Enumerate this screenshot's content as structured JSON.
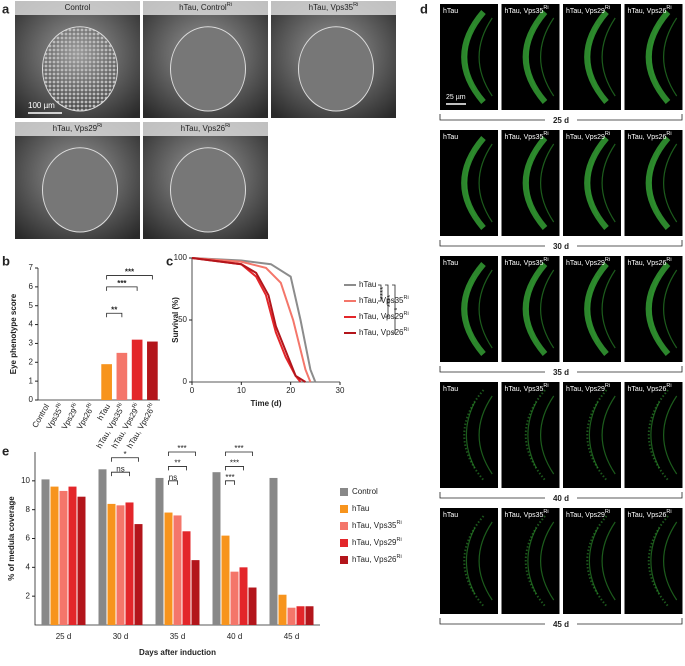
{
  "panel_labels": [
    "a",
    "b",
    "c",
    "d",
    "e"
  ],
  "panel_a": {
    "images": [
      {
        "label": "Control"
      },
      {
        "label": "hTau, Control",
        "sup": "Ri"
      },
      {
        "label": "hTau, Vps35",
        "sup": "Ri"
      },
      {
        "label": "hTau, Vps29",
        "sup": "Ri"
      },
      {
        "label": "hTau, Vps26",
        "sup": "Ri"
      }
    ],
    "scale_bar": "100 µm"
  },
  "panel_d": {
    "columns": [
      {
        "label": "hTau"
      },
      {
        "label": "hTau, Vps35",
        "sup": "Ri"
      },
      {
        "label": "hTau, Vps29",
        "sup": "Ri"
      },
      {
        "label": "hTau, Vps26",
        "sup": "Ri"
      }
    ],
    "rows": [
      "25 d",
      "30 d",
      "35 d",
      "40 d",
      "45 d"
    ],
    "scale_bar": "25 µm"
  },
  "chart_data": [
    {
      "type": "bar",
      "ylabel": "Eye phenotype score",
      "categories": [
        {
          "text": "Control"
        },
        {
          "text": "Vps35",
          "sup": "Ri"
        },
        {
          "text": "Vps29",
          "sup": "Ri"
        },
        {
          "text": "Vps26",
          "sup": "Ri"
        },
        {
          "text": "hTau"
        },
        {
          "text": "hTau, Vps35",
          "sup": "Ri"
        },
        {
          "text": "hTau, Vps29",
          "sup": "Ri"
        },
        {
          "text": "hTau, Vps26",
          "sup": "Ri"
        }
      ],
      "values": [
        0,
        0,
        0,
        0,
        1.9,
        2.5,
        3.2,
        3.1
      ],
      "colors": [
        "#888888",
        "#888888",
        "#888888",
        "#888888",
        "#f7941d",
        "#f4766a",
        "#e3262a",
        "#b3151b"
      ],
      "ylim": [
        0,
        7
      ],
      "yticks": [
        0,
        1,
        2,
        3,
        4,
        5,
        6,
        7
      ],
      "annotations": [
        "**",
        "***",
        "***"
      ]
    },
    {
      "type": "line",
      "xlabel": "Time (d)",
      "ylabel": "Survival (%)",
      "xlim": [
        0,
        30
      ],
      "ylim": [
        0,
        100
      ],
      "xticks": [
        0,
        10,
        20,
        30
      ],
      "yticks": [
        0,
        50,
        100
      ],
      "series": [
        {
          "name": "hTau",
          "color": "#8c8c8c",
          "x": [
            0,
            10,
            16,
            20,
            22,
            24,
            25
          ],
          "values": [
            100,
            98,
            95,
            85,
            50,
            10,
            0
          ]
        },
        {
          "name": "hTau, Vps35",
          "name_sup": "Ri",
          "color": "#f4766a",
          "x": [
            0,
            10,
            15,
            18,
            20.5,
            23,
            24
          ],
          "values": [
            100,
            97,
            92,
            80,
            50,
            10,
            0
          ]
        },
        {
          "name": "hTau, Vps29",
          "name_sup": "Ri",
          "color": "#e3262a",
          "x": [
            0,
            10,
            13,
            15,
            17,
            19,
            21,
            22
          ],
          "values": [
            100,
            95,
            85,
            70,
            40,
            20,
            5,
            0
          ]
        },
        {
          "name": "hTau, Vps26",
          "name_sup": "Ri",
          "color": "#b3151b",
          "x": [
            0,
            10,
            13,
            15.5,
            17,
            19,
            21,
            23
          ],
          "values": [
            100,
            95,
            88,
            70,
            45,
            25,
            5,
            0
          ]
        }
      ],
      "annotations": [
        "****",
        "****",
        "*"
      ]
    },
    {
      "type": "grouped-bar",
      "xlabel": "Days after induction",
      "ylabel": "% of medula coverage",
      "categories": [
        "25 d",
        "30 d",
        "35 d",
        "40 d",
        "45 d"
      ],
      "ylim": [
        0,
        12
      ],
      "yticks": [
        2,
        4,
        6,
        8,
        10
      ],
      "series": [
        {
          "name": "Control",
          "color": "#888888",
          "values": [
            10.1,
            10.8,
            10.2,
            10.6,
            10.2
          ]
        },
        {
          "name": "hTau",
          "color": "#f7941d",
          "values": [
            9.6,
            8.4,
            7.8,
            6.2,
            2.1
          ]
        },
        {
          "name": "hTau, Vps35",
          "name_sup": "Ri",
          "color": "#f4766a",
          "values": [
            9.3,
            8.3,
            7.6,
            3.7,
            1.2
          ]
        },
        {
          "name": "hTau, Vps29",
          "name_sup": "Ri",
          "color": "#e3262a",
          "values": [
            9.6,
            8.5,
            6.5,
            4.0,
            1.3
          ]
        },
        {
          "name": "hTau, Vps26",
          "name_sup": "Ri",
          "color": "#b3151b",
          "values": [
            8.9,
            7.0,
            4.5,
            2.6,
            1.3
          ]
        }
      ],
      "annotations": [
        "*",
        "ns",
        "***",
        "**",
        "ns",
        "***",
        "***",
        "***"
      ]
    }
  ]
}
